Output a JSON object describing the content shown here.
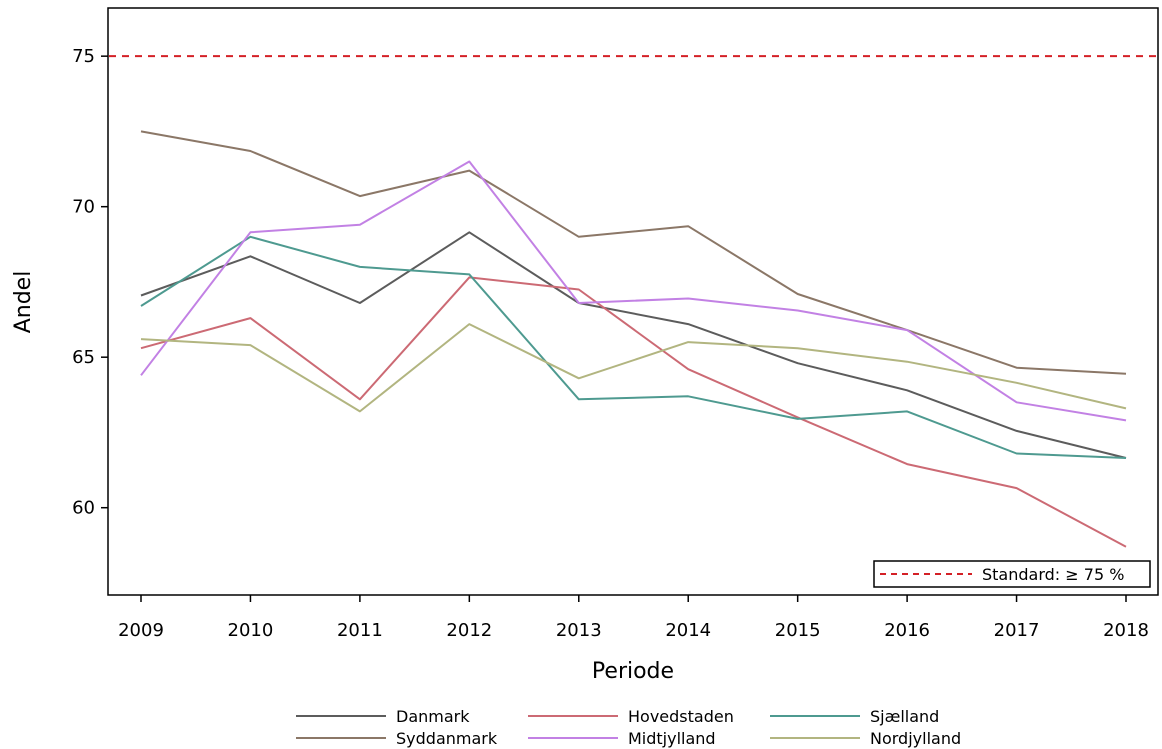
{
  "chart_data": {
    "type": "line",
    "xlabel": "Periode",
    "ylabel": "Andel",
    "categories": [
      "2009",
      "2010",
      "2011",
      "2012",
      "2013",
      "2014",
      "2015",
      "2016",
      "2017",
      "2018"
    ],
    "y_ticks": [
      "60",
      "65",
      "70",
      "75"
    ],
    "ylim": [
      57.1,
      76.6
    ],
    "grid": false,
    "series": [
      {
        "name": "Danmark",
        "color": "#5c5c5c",
        "values": [
          67.05,
          68.35,
          66.8,
          69.15,
          66.8,
          66.1,
          64.8,
          63.9,
          62.55,
          61.65
        ]
      },
      {
        "name": "Hovedstaden",
        "color": "#cc6a74",
        "values": [
          65.3,
          66.3,
          63.6,
          67.65,
          67.25,
          64.6,
          63.0,
          61.45,
          60.65,
          58.7
        ]
      },
      {
        "name": "Sjælland",
        "color": "#4e9a90",
        "values": [
          66.7,
          69.0,
          68.0,
          67.75,
          63.6,
          63.7,
          62.95,
          63.2,
          61.8,
          61.65
        ]
      },
      {
        "name": "Syddanmark",
        "color": "#8b7767",
        "values": [
          72.5,
          71.85,
          70.35,
          71.2,
          69.0,
          69.35,
          67.1,
          65.9,
          64.65,
          64.45
        ]
      },
      {
        "name": "Midtjylland",
        "color": "#c281e4",
        "values": [
          64.4,
          69.15,
          69.4,
          71.5,
          66.8,
          66.95,
          66.55,
          65.9,
          63.5,
          62.9
        ]
      },
      {
        "name": "Nordjylland",
        "color": "#b2b580",
        "values": [
          65.6,
          65.4,
          63.2,
          66.1,
          64.3,
          65.5,
          65.3,
          64.85,
          64.15,
          63.3
        ]
      }
    ],
    "reference_line": {
      "value": 75,
      "color": "#d42026",
      "label": "Standard: ≥ 75 %"
    },
    "legend_position": "bottom"
  }
}
